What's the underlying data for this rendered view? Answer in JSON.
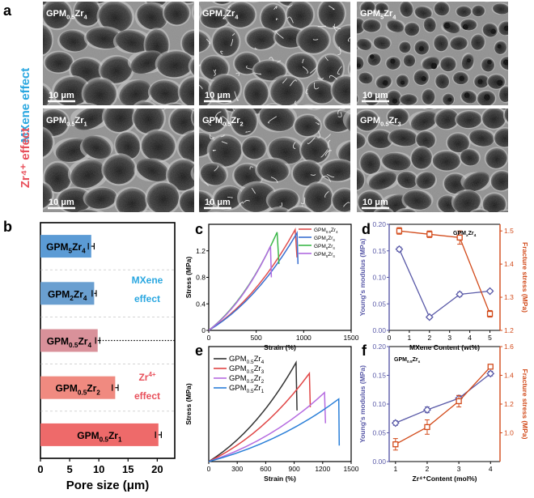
{
  "panel_labels": {
    "a": "a",
    "b": "b",
    "c": "c",
    "d": "d",
    "e": "e",
    "f": "f"
  },
  "panel_a": {
    "row_labels": [
      "MXene effect",
      "Zr⁴⁺ effect"
    ],
    "row_colors": [
      "#2aa7e0",
      "#e8505b"
    ],
    "images": [
      {
        "label": "GPM0.5Zr4",
        "base": "GPM",
        "sub": "0.5",
        "mid": "Zr",
        "sub2": "4",
        "scale": "10 μm",
        "style": "honeycomb-large"
      },
      {
        "label": "GPM2Zr4",
        "base": "GPM",
        "sub": "2",
        "mid": "Zr",
        "sub2": "4",
        "scale": "10 μm",
        "style": "honeycomb-fibrous"
      },
      {
        "label": "GPM5Zr4",
        "base": "GPM",
        "sub": "5",
        "mid": "Zr",
        "sub2": "4",
        "scale": "10 μm",
        "style": "porous-dense"
      },
      {
        "label": "GPM0.5Zr1",
        "base": "GPM",
        "sub": "0.5",
        "mid": "Zr",
        "sub2": "1",
        "scale": "10 μm",
        "style": "honeycomb-large"
      },
      {
        "label": "GPM0.5Zr2",
        "base": "GPM",
        "sub": "0.5",
        "mid": "Zr",
        "sub2": "2",
        "scale": "10 μm",
        "style": "honeycomb-fibrous"
      },
      {
        "label": "GPM0.5Zr3",
        "base": "GPM",
        "sub": "0.5",
        "mid": "Zr",
        "sub2": "3",
        "scale": "10 μm",
        "style": "honeycomb-medium"
      }
    ]
  },
  "chart_data": [
    {
      "panel": "b",
      "type": "bar",
      "orientation": "horizontal",
      "categories": [
        "GPM5Zr4",
        "GPM2Zr4",
        "GPM0.5Zr4",
        "GPM0.5Zr2",
        "GPM0.5Zr1"
      ],
      "category_parts": [
        [
          "GPM",
          "5",
          "Zr",
          "4"
        ],
        [
          "GPM",
          "2",
          "Zr",
          "4"
        ],
        [
          "GPM",
          "0.5",
          "Zr",
          "4"
        ],
        [
          "GPM",
          "0.5",
          "Zr",
          "2"
        ],
        [
          "GPM",
          "0.5",
          "Zr",
          "1"
        ]
      ],
      "values": [
        8.7,
        9.2,
        9.8,
        12.8,
        20.2
      ],
      "errors": [
        0.5,
        0.35,
        0.35,
        0.5,
        0.5
      ],
      "colors": [
        "#5b9bd5",
        "#6a9fd0",
        "#d9919a",
        "#f08a80",
        "#ee6a6a"
      ],
      "xlabel": "Pore size (μm)",
      "xlim": [
        0,
        23
      ],
      "xticks": [
        0,
        5,
        10,
        15,
        20
      ],
      "annotations": [
        {
          "text": "MXene",
          "color": "#2aa7e0"
        },
        {
          "text": "effect",
          "color": "#2aa7e0"
        },
        {
          "text": "Zr",
          "sup": "4+",
          "color": "#e8505b"
        },
        {
          "text": "effect",
          "color": "#e8505b"
        }
      ]
    },
    {
      "panel": "c",
      "type": "line",
      "xlabel": "Strain (%)",
      "ylabel": "Stress (MPa)",
      "xlim": [
        0,
        1500
      ],
      "ylim": [
        0,
        1.6
      ],
      "xticks": [
        0,
        500,
        1000,
        1500
      ],
      "yticks": [
        0,
        0.4,
        0.8,
        1.2
      ],
      "series": [
        {
          "name": "GPM0.5Zr4",
          "color": "#e05050",
          "x": [
            0,
            910,
            930
          ],
          "y": [
            0,
            1.52,
            1.1
          ]
        },
        {
          "name": "GPM2Zr4",
          "color": "#3a6fd0",
          "x": [
            0,
            930,
            940
          ],
          "y": [
            0,
            1.47,
            1.0
          ]
        },
        {
          "name": "GPM5Zr4",
          "color": "#3cb84a",
          "x": [
            0,
            720,
            740
          ],
          "y": [
            0,
            1.48,
            1.0
          ]
        },
        {
          "name": "GPM5Zr4",
          "color": "#b06be0",
          "x": [
            0,
            650,
            660
          ],
          "y": [
            0,
            1.27,
            0.8
          ]
        }
      ],
      "legend_parts": [
        [
          "GPM",
          "0.5",
          "Zr",
          "4"
        ],
        [
          "GPM",
          "2",
          "Zr",
          "4"
        ],
        [
          "GPM",
          "5",
          "Zr",
          "4"
        ],
        [
          "GPM",
          "5",
          "Zr",
          "4"
        ]
      ]
    },
    {
      "panel": "d",
      "type": "line",
      "dual_axis": true,
      "xlabel": "MXene Content (wt%)",
      "ylabel": "Young's modulus (MPa)",
      "ylabel2": "Fracture stress (MPa)",
      "xlim": [
        0,
        5.5
      ],
      "xticks": [
        0,
        1,
        2,
        3,
        4,
        5
      ],
      "ylim": [
        0,
        0.2
      ],
      "yticks": [
        0,
        0.05,
        0.1,
        0.15,
        0.2
      ],
      "ylim2": [
        1.2,
        1.52
      ],
      "yticks2": [
        1.2,
        1.3,
        1.4,
        1.5
      ],
      "inset_label": [
        "GPM",
        "x",
        "Zr",
        "4"
      ],
      "series": [
        {
          "name": "Young's modulus",
          "axis": "left",
          "color": "#5a5aa8",
          "marker": "diamond",
          "x": [
            0.5,
            2,
            3.5,
            5
          ],
          "y": [
            0.153,
            0.025,
            0.068,
            0.074
          ],
          "err": [
            0.004,
            0.003,
            0.004,
            0.003
          ]
        },
        {
          "name": "Fracture stress",
          "axis": "right",
          "color": "#d24a1a",
          "marker": "square",
          "x": [
            0.5,
            2,
            3.5,
            5
          ],
          "y": [
            1.5,
            1.49,
            1.48,
            1.25
          ],
          "err": [
            0.01,
            0.01,
            0.02,
            0.01
          ]
        }
      ]
    },
    {
      "panel": "e",
      "type": "line",
      "xlabel": "Strain (%)",
      "ylabel": "Stress (MPa)",
      "xlim": [
        0,
        1500
      ],
      "ylim": [
        0,
        1.8
      ],
      "xticks": [
        0,
        300,
        600,
        900,
        1200,
        1500
      ],
      "yticks": [],
      "series": [
        {
          "name": "GPM0.5Zr4",
          "color": "#333333",
          "x": [
            0,
            920,
            930
          ],
          "y": [
            0,
            1.55,
            0.8
          ]
        },
        {
          "name": "GPM0.5Zr3",
          "color": "#e04545",
          "x": [
            0,
            1060,
            1070
          ],
          "y": [
            0,
            1.38,
            0.85
          ]
        },
        {
          "name": "GPM0.5Zr2",
          "color": "#b56be0",
          "x": [
            0,
            1220,
            1230
          ],
          "y": [
            0,
            1.08,
            0.6
          ]
        },
        {
          "name": "GPM0.5Zr1",
          "color": "#2a7fd8",
          "x": [
            0,
            1370,
            1375
          ],
          "y": [
            0,
            0.98,
            0.25
          ]
        }
      ],
      "legend_parts": [
        [
          "GPM",
          "0.5",
          "Zr",
          "4"
        ],
        [
          "GPM",
          "0.5",
          "Zr",
          "3"
        ],
        [
          "GPM",
          "0.5",
          "Zr",
          "2"
        ],
        [
          "GPM",
          "0.5",
          "Zr",
          "1"
        ]
      ]
    },
    {
      "panel": "f",
      "type": "line",
      "dual_axis": true,
      "xlabel": "Zr⁴⁺Content (mol%)",
      "ylabel": "Young's modulus (MPa)",
      "ylabel2": "Fracture stress (MPa)",
      "xlim": [
        0.8,
        4.3
      ],
      "xticks": [
        1,
        2,
        3,
        4
      ],
      "ylim": [
        0,
        0.2
      ],
      "yticks": [
        0,
        0.05,
        0.1,
        0.15,
        0.2
      ],
      "ylim2": [
        0.8,
        1.6
      ],
      "yticks2": [
        1.0,
        1.2,
        1.4,
        1.6
      ],
      "inset_label": [
        "GPM",
        "0.5",
        "Zr",
        "x"
      ],
      "series": [
        {
          "name": "Young's modulus",
          "axis": "left",
          "color": "#5a5aa8",
          "marker": "diamond",
          "x": [
            1,
            2,
            3,
            4
          ],
          "y": [
            0.067,
            0.09,
            0.11,
            0.153
          ],
          "err": [
            0.004,
            0.005,
            0.005,
            0.004
          ]
        },
        {
          "name": "Fracture stress",
          "axis": "right",
          "color": "#d24a1a",
          "marker": "square",
          "x": [
            1,
            2,
            3,
            4
          ],
          "y": [
            0.92,
            1.04,
            1.22,
            1.46
          ],
          "err": [
            0.04,
            0.05,
            0.04,
            0.015
          ]
        }
      ]
    }
  ]
}
